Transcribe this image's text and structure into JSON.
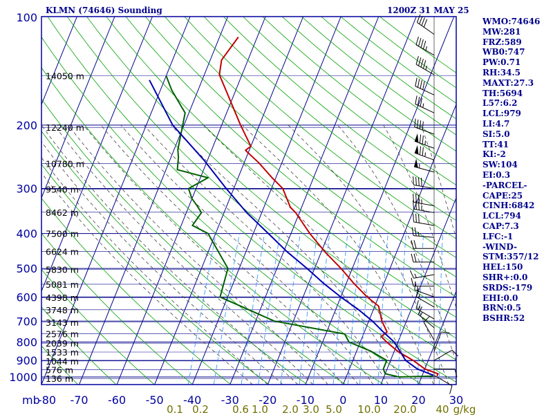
{
  "header": {
    "station": "KLMN (74646) Sounding",
    "time": "1200Z 31 MAY 25"
  },
  "indices": [
    "WMO:74646",
    "MW:281",
    "FRZ:589",
    "WB0:747",
    "PW:0.71",
    "RH:34.5",
    "MAXT:27.3",
    "TH:5694",
    "L57:6.2",
    "LCL:979",
    "LI:4.7",
    "SI:5.0",
    "TT:41",
    "KI:-2",
    "SW:104",
    "EI:0.3",
    "-PARCEL-",
    "CAPE:25",
    "CINH:6842",
    "LCL:794",
    "CAP:7.3",
    "LFC:-1",
    "-WIND-",
    "STM:357/12",
    "HEL:150",
    "SHR+:0.0",
    "SRDS:-179",
    "EHI:0.0",
    "BRN:0.5",
    "BSHR:52"
  ],
  "colors": {
    "frame": "#0000a0",
    "isotherm": "#00008b",
    "isobar": "#00008b",
    "dry_adiabat": "#00a000",
    "moist_adiabat": "#404040",
    "mixing_ratio": "#3399ff",
    "temperature": "#c00000",
    "dewpoint": "#006000",
    "parcel": "#0000b0",
    "mixing_label": "#707000",
    "wind": "#000000"
  },
  "chart_data": {
    "type": "line",
    "y_axis": {
      "unit": "mb",
      "ticks": [
        100,
        200,
        300,
        400,
        500,
        600,
        700,
        800,
        900,
        1000
      ]
    },
    "x_axis": {
      "ticks": [
        -80,
        -70,
        -60,
        -50,
        -40,
        -30,
        -20,
        -10,
        0,
        10,
        20,
        30
      ]
    },
    "mixing_ratio_labels": [
      "0.1",
      "0.2",
      "0.6",
      "1.0",
      "2.0",
      "3.0",
      "5.0",
      "10.0",
      "20.0",
      "40",
      "g/kg"
    ],
    "height_labels": [
      {
        "p": 146,
        "label": "14050 m"
      },
      {
        "p": 203,
        "label": "12240 m"
      },
      {
        "p": 256,
        "label": "10780 m"
      },
      {
        "p": 301,
        "label": "9540 m"
      },
      {
        "p": 349,
        "label": "8462 m"
      },
      {
        "p": 400,
        "label": "7500 m"
      },
      {
        "p": 448,
        "label": "6624 m"
      },
      {
        "p": 503,
        "label": "5830 m"
      },
      {
        "p": 553,
        "label": "5081 m"
      },
      {
        "p": 602,
        "label": "4398 m"
      },
      {
        "p": 651,
        "label": "3748 m"
      },
      {
        "p": 705,
        "label": "3143 m"
      },
      {
        "p": 758,
        "label": "2576 m"
      },
      {
        "p": 806,
        "label": "2039 m"
      },
      {
        "p": 853,
        "label": "1533 m"
      },
      {
        "p": 903,
        "label": "1044 m"
      },
      {
        "p": 955,
        "label": "576 m"
      },
      {
        "p": 1010,
        "label": "136 m"
      }
    ],
    "series": [
      {
        "key": "temperature",
        "points": [
          [
            114,
            -65
          ],
          [
            132,
            -67
          ],
          [
            145,
            -66
          ],
          [
            200,
            -55
          ],
          [
            229,
            -50
          ],
          [
            235,
            -51
          ],
          [
            255,
            -46
          ],
          [
            280,
            -41
          ],
          [
            300,
            -37
          ],
          [
            338,
            -33
          ],
          [
            350,
            -31
          ],
          [
            400,
            -25
          ],
          [
            450,
            -19
          ],
          [
            500,
            -13
          ],
          [
            550,
            -8
          ],
          [
            600,
            -3
          ],
          [
            636,
            1
          ],
          [
            700,
            3.5
          ],
          [
            750,
            6
          ],
          [
            773,
            5
          ],
          [
            800,
            7
          ],
          [
            850,
            11
          ],
          [
            900,
            16
          ],
          [
            950,
            20
          ],
          [
            980,
            24
          ],
          [
            995,
            24
          ]
        ]
      },
      {
        "key": "dewpoint",
        "points": [
          [
            146,
            -80
          ],
          [
            160,
            -77
          ],
          [
            185,
            -71
          ],
          [
            234,
            -69
          ],
          [
            246,
            -68
          ],
          [
            266,
            -67
          ],
          [
            280,
            -58
          ],
          [
            300,
            -62
          ],
          [
            320,
            -60
          ],
          [
            334,
            -58
          ],
          [
            350,
            -56
          ],
          [
            380,
            -57
          ],
          [
            400,
            -52
          ],
          [
            500,
            -43
          ],
          [
            600,
            -42
          ],
          [
            700,
            -25
          ],
          [
            760,
            -5
          ],
          [
            800,
            -3
          ],
          [
            850,
            4
          ],
          [
            900,
            9
          ],
          [
            950,
            9
          ],
          [
            980,
            10
          ],
          [
            1000,
            14
          ],
          [
            995,
            23
          ]
        ]
      },
      {
        "key": "parcel",
        "points": [
          [
            150,
            -84
          ],
          [
            200,
            -73
          ],
          [
            250,
            -61
          ],
          [
            300,
            -52
          ],
          [
            350,
            -44
          ],
          [
            400,
            -36
          ],
          [
            450,
            -29
          ],
          [
            500,
            -22
          ],
          [
            550,
            -16
          ],
          [
            600,
            -10
          ],
          [
            650,
            -4
          ],
          [
            700,
            1
          ],
          [
            750,
            5
          ],
          [
            800,
            9
          ],
          [
            900,
            14
          ],
          [
            950,
            18
          ],
          [
            990,
            23
          ]
        ]
      }
    ],
    "winds": [
      {
        "p": 112,
        "dir": 305,
        "kt": 40
      },
      {
        "p": 128,
        "dir": 300,
        "kt": 45
      },
      {
        "p": 145,
        "dir": 300,
        "kt": 45
      },
      {
        "p": 165,
        "dir": 295,
        "kt": 40
      },
      {
        "p": 185,
        "dir": 295,
        "kt": 35
      },
      {
        "p": 212,
        "dir": 290,
        "kt": 40
      },
      {
        "p": 232,
        "dir": 290,
        "kt": 75
      },
      {
        "p": 250,
        "dir": 290,
        "kt": 75
      },
      {
        "p": 270,
        "dir": 285,
        "kt": 55
      },
      {
        "p": 300,
        "dir": 280,
        "kt": 40
      },
      {
        "p": 335,
        "dir": 280,
        "kt": 35
      },
      {
        "p": 350,
        "dir": 280,
        "kt": 35
      },
      {
        "p": 380,
        "dir": 280,
        "kt": 30
      },
      {
        "p": 410,
        "dir": 275,
        "kt": 25
      },
      {
        "p": 440,
        "dir": 270,
        "kt": 20
      },
      {
        "p": 480,
        "dir": 270,
        "kt": 20
      },
      {
        "p": 520,
        "dir": 260,
        "kt": 15
      },
      {
        "p": 560,
        "dir": 270,
        "kt": 15
      },
      {
        "p": 600,
        "dir": 290,
        "kt": 15
      },
      {
        "p": 640,
        "dir": 300,
        "kt": 15
      },
      {
        "p": 690,
        "dir": 300,
        "kt": 15
      },
      {
        "p": 730,
        "dir": 310,
        "kt": 15
      },
      {
        "p": 790,
        "dir": 330,
        "kt": 10
      },
      {
        "p": 850,
        "dir": 20,
        "kt": 10
      },
      {
        "p": 900,
        "dir": 60,
        "kt": 10
      },
      {
        "p": 950,
        "dir": 90,
        "kt": 10
      },
      {
        "p": 990,
        "dir": 120,
        "kt": 10
      }
    ]
  }
}
